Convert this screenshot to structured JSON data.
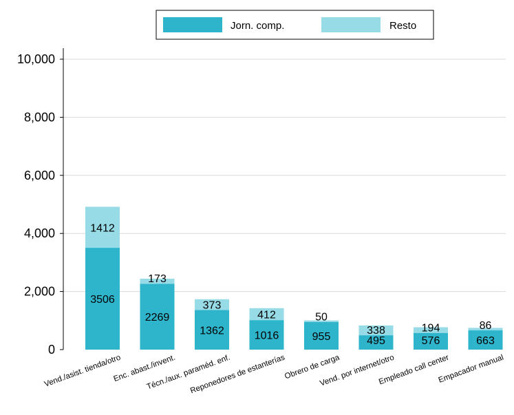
{
  "chart_data": {
    "type": "bar",
    "stacked": true,
    "categories": [
      "Vend./asist. tienda/otro",
      "Enc. abast./invent.",
      "Técn./aux. paraméd. enf.",
      "Reponedores de estanterías",
      "Obrero de carga",
      "Vend. por internet/otro",
      "Empleado call center",
      "Empacador manual"
    ],
    "series": [
      {
        "name": "Jorn. comp.",
        "color": "#2eb5cc",
        "values": [
          3506,
          2269,
          1362,
          1016,
          955,
          495,
          576,
          663
        ]
      },
      {
        "name": "Resto",
        "color": "#96dbe6",
        "values": [
          1412,
          173,
          373,
          412,
          50,
          338,
          194,
          86
        ]
      }
    ],
    "yticks": [
      "0",
      "2,000",
      "4,000",
      "6,000",
      "8,000",
      "10,000"
    ],
    "ytick_values": [
      0,
      2000,
      4000,
      6000,
      8000,
      10000
    ],
    "ylim": [
      0,
      10000
    ],
    "grid": true,
    "legend_position": "top-center"
  }
}
